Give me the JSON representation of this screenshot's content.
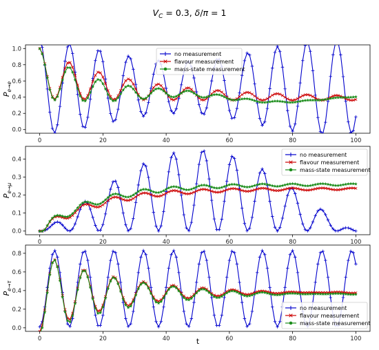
{
  "title": "V_C = 0.3, δ/π = 1",
  "xlabel": "t",
  "chart_data": [
    {
      "type": "line",
      "ylabel_main": "P",
      "ylabel_sub": "e→e",
      "xlim": [
        0,
        100
      ],
      "ylim": [
        0,
        1.0
      ],
      "yticks": [
        "0.0",
        "0.2",
        "0.4",
        "0.6",
        "0.8",
        "1.0"
      ],
      "xticks": [
        "0",
        "20",
        "40",
        "60",
        "80",
        "100"
      ],
      "legend_position": "upper-center",
      "series": [
        {
          "name": "no measurement",
          "color": "#0000cc",
          "marker": "+",
          "model": {
            "amp": 0.45,
            "amp_growth_osc": 0.13,
            "period": 9.4,
            "beat_period": 95,
            "offset": 0.52
          }
        },
        {
          "name": "flavour measurement",
          "color": "#cc0000",
          "marker": "x",
          "model": {
            "start": 1.0,
            "final": 0.38,
            "decay": 0.035,
            "period": 9.4,
            "amp": 0.5
          }
        },
        {
          "name": "mass-state measurement",
          "color": "#1a8c1a",
          "marker": "*",
          "model": {
            "start": 1.0,
            "final": 0.37,
            "decay": 0.045,
            "period": 9.4,
            "amp": 0.5
          }
        }
      ]
    },
    {
      "type": "line",
      "ylabel_main": "P",
      "ylabel_sub": "e→μ",
      "xlim": [
        0,
        100
      ],
      "ylim": [
        0,
        0.45
      ],
      "yticks": [
        "0.0",
        "0.1",
        "0.2",
        "0.3",
        "0.4"
      ],
      "xticks": [
        "0",
        "20",
        "40",
        "60",
        "80",
        "100"
      ],
      "legend_position": "upper-right",
      "series": [
        {
          "name": "no measurement",
          "color": "#0000cc",
          "marker": "+",
          "model": {
            "envelope_peak": 0.45,
            "peak_t": 50,
            "period": 9.4
          }
        },
        {
          "name": "flavour measurement",
          "color": "#cc0000",
          "marker": "x",
          "model": {
            "final": 0.235,
            "period": 9.4,
            "amp": 0.05
          }
        },
        {
          "name": "mass-state measurement",
          "color": "#1a8c1a",
          "marker": "*",
          "model": {
            "final": 0.26,
            "period": 9.4,
            "amp": 0.05
          }
        }
      ]
    },
    {
      "type": "line",
      "ylabel_main": "P",
      "ylabel_sub": "e→τ",
      "xlim": [
        0,
        100
      ],
      "ylim": [
        0,
        0.85
      ],
      "yticks": [
        "0.0",
        "0.2",
        "0.4",
        "0.6",
        "0.8"
      ],
      "xticks": [
        "0",
        "20",
        "40",
        "60",
        "80",
        "100"
      ],
      "legend_position": "lower-right",
      "series": [
        {
          "name": "no measurement",
          "color": "#0000cc",
          "marker": "+",
          "model": {
            "amp": 0.41,
            "offset": 0.42,
            "period": 9.4
          }
        },
        {
          "name": "flavour measurement",
          "color": "#cc0000",
          "marker": "x",
          "model": {
            "final": 0.38,
            "period": 9.4,
            "amp": 0.4
          }
        },
        {
          "name": "mass-state measurement",
          "color": "#1a8c1a",
          "marker": "*",
          "model": {
            "final": 0.365,
            "period": 9.4,
            "amp": 0.4
          }
        }
      ]
    }
  ]
}
